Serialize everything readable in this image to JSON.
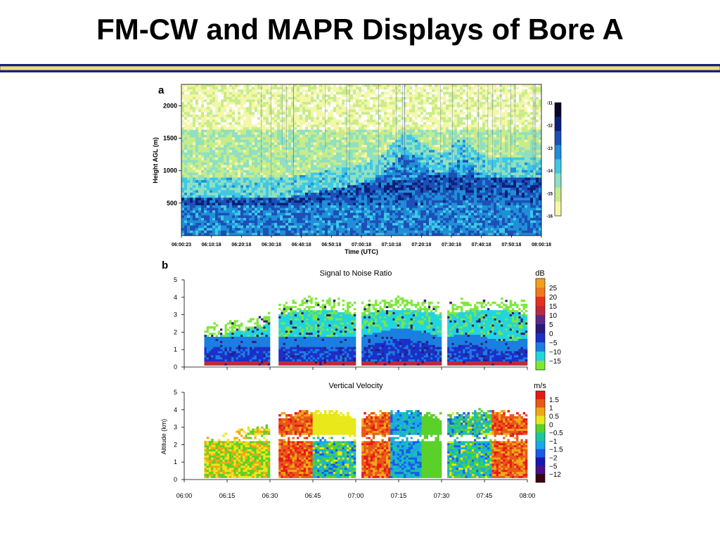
{
  "slide": {
    "title": "FM-CW and MAPR Displays of Bore A",
    "rule_colors": [
      "#1c1c8c",
      "#e8e070"
    ]
  },
  "colors": {
    "radar": [
      "#ffffff",
      "#f4f7a8",
      "#c8ec8a",
      "#8fe0c0",
      "#3fc8e6",
      "#1f8fd8",
      "#1c50b8",
      "#0c1f78",
      "#05072a"
    ],
    "snr_scale": [
      "#7ee83a",
      "#22d4e0",
      "#1a7fe0",
      "#1c2fc8",
      "#2a1a7a",
      "#5a2a8a",
      "#c0283a",
      "#e83020",
      "#f07a1a",
      "#f0a020"
    ],
    "vv_scale": [
      "#3a0612",
      "#4a1088",
      "#1818b0",
      "#1a5ae8",
      "#1aa8e8",
      "#1ac89a",
      "#5ad02a",
      "#e8e81a",
      "#f0a818",
      "#e85818",
      "#e81818"
    ]
  },
  "chart_data": [
    {
      "id": "a",
      "panel_label": "a",
      "type": "heatmap",
      "title": "",
      "xlabel": "Time (UTC)",
      "ylabel": "Height AGL (m)",
      "x_ticks": [
        "06:00:23",
        "06:10:18",
        "06:20:18",
        "06:30:18",
        "06:40:18",
        "06:50:18",
        "07:00:18",
        "07:10:18",
        "07:20:18",
        "07:30:18",
        "07:40:18",
        "07:50:18",
        "08:00:18"
      ],
      "y_ticks": [
        "500",
        "1000",
        "1500",
        "2000"
      ],
      "y_tick_values": [
        500,
        1000,
        1500,
        2000
      ],
      "ylim": [
        0,
        2330
      ],
      "colorbar": {
        "ticks": [
          "-11",
          "-12",
          "-13",
          "-14",
          "-15",
          "-16"
        ],
        "range": [
          -16,
          -11
        ]
      },
      "note_values": {
        "boundary_layer_top_m": [
          [
            0,
            580
          ],
          [
            0.3,
            600
          ],
          [
            0.4,
            700
          ],
          [
            0.55,
            840
          ],
          [
            0.7,
            920
          ],
          [
            1,
            900
          ]
        ],
        "wave_crests_utc": [
          "07:13",
          "07:35"
        ],
        "wave_crest_heights_m": [
          1300,
          1150
        ]
      }
    },
    {
      "id": "b1",
      "panel_label": "b",
      "type": "heatmap",
      "title": "Signal to Noise Ratio",
      "unit": "dB",
      "ylabel": "",
      "y_ticks": [
        "0",
        "1",
        "2",
        "3",
        "4",
        "5"
      ],
      "ylim": [
        0,
        5
      ],
      "x_ticks": [
        "06:00",
        "06:15",
        "06:30",
        "06:45",
        "07:00",
        "07:15",
        "07:30",
        "07:45",
        "08:00"
      ],
      "show_x_ticks": false,
      "colorbar": {
        "ticks": [
          "25",
          "20",
          "15",
          "10",
          "5",
          "0",
          "−5",
          "−10",
          "−15"
        ]
      },
      "data_segments": [
        [
          "06:07",
          "06:30"
        ],
        [
          "06:33",
          "07:00"
        ],
        [
          "07:02",
          "07:30"
        ],
        [
          "07:32",
          "08:00"
        ]
      ],
      "segment_tops_km": [
        3.1,
        4.1,
        4.1,
        4.1
      ]
    },
    {
      "id": "b2",
      "panel_label": "",
      "type": "heatmap",
      "title": "Vertical Velocity",
      "unit": "m/s",
      "ylabel": "Altitude (km)",
      "y_ticks": [
        "0",
        "1",
        "2",
        "3",
        "4",
        "5"
      ],
      "ylim": [
        0,
        5
      ],
      "x_ticks": [
        "06:00",
        "06:15",
        "06:30",
        "06:45",
        "07:00",
        "07:15",
        "07:30",
        "07:45",
        "08:00"
      ],
      "show_x_ticks": true,
      "colorbar": {
        "ticks": [
          "1.5",
          "1",
          "0.5",
          "0",
          "−0.5",
          "−1",
          "−1.5",
          "−2",
          "−5",
          "−12"
        ]
      },
      "data_segments": [
        [
          "06:07",
          "06:30"
        ],
        [
          "06:33",
          "07:00"
        ],
        [
          "07:02",
          "07:30"
        ],
        [
          "07:32",
          "08:00"
        ]
      ]
    }
  ]
}
